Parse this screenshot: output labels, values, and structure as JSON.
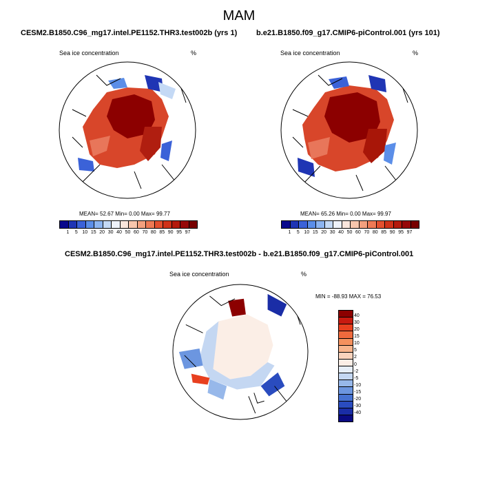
{
  "title": "MAM",
  "panels": {
    "left": {
      "case": "CESM2.B1850.C96_mg17.intel.PE1152.THR3.test002b (yrs 1)",
      "field": "Sea ice concentration",
      "units": "%",
      "mean_label": "MEAN=",
      "mean": "52.67",
      "min_label": "Min=",
      "min": "0.00",
      "max_label": "Max=",
      "max": "99.77"
    },
    "right": {
      "case": "b.e21.B1850.f09_g17.CMIP6-piControl.001 (yrs 101)",
      "field": "Sea ice concentration",
      "units": "%",
      "mean_label": "MEAN=",
      "mean": "65.26",
      "min_label": "Min=",
      "min": "0.00",
      "max_label": "Max=",
      "max": "99.97"
    },
    "diff": {
      "title": "CESM2.B1850.C96_mg17.intel.PE1152.THR3.test002b - b.e21.B1850.f09_g17.CMIP6-piControl.001",
      "field": "Sea ice concentration",
      "units": "%",
      "minmax": "MIN = -88.93  MAX = 76.53"
    }
  },
  "colorbar_abs": {
    "labels": [
      "1",
      "5",
      "10",
      "15",
      "20",
      "30",
      "40",
      "50",
      "60",
      "70",
      "80",
      "85",
      "90",
      "95",
      "97"
    ],
    "colors": [
      "#08088c",
      "#1f35b4",
      "#3b62d8",
      "#5b8ee8",
      "#8cb4f0",
      "#c4d9f5",
      "#eef2fa",
      "#fae6dc",
      "#f7c6ad",
      "#f3a07e",
      "#ee7a55",
      "#e3502f",
      "#cf3219",
      "#b41a0c",
      "#960808",
      "#780000"
    ]
  },
  "colorbar_diff": {
    "labels": [
      "40",
      "30",
      "20",
      "15",
      "10",
      "5",
      "2",
      "0",
      "-2",
      "-5",
      "-10",
      "-15",
      "-20",
      "-30",
      "-40"
    ],
    "colors": [
      "#8c0000",
      "#c81a10",
      "#e8401f",
      "#f06a3d",
      "#f4915e",
      "#f7b48c",
      "#f9d3bd",
      "#fbeee6",
      "#e6eef8",
      "#c4d7f2",
      "#97b8ea",
      "#6c96e0",
      "#4672d2",
      "#2a4cbf",
      "#1a2da6",
      "#0a0a82"
    ]
  }
}
